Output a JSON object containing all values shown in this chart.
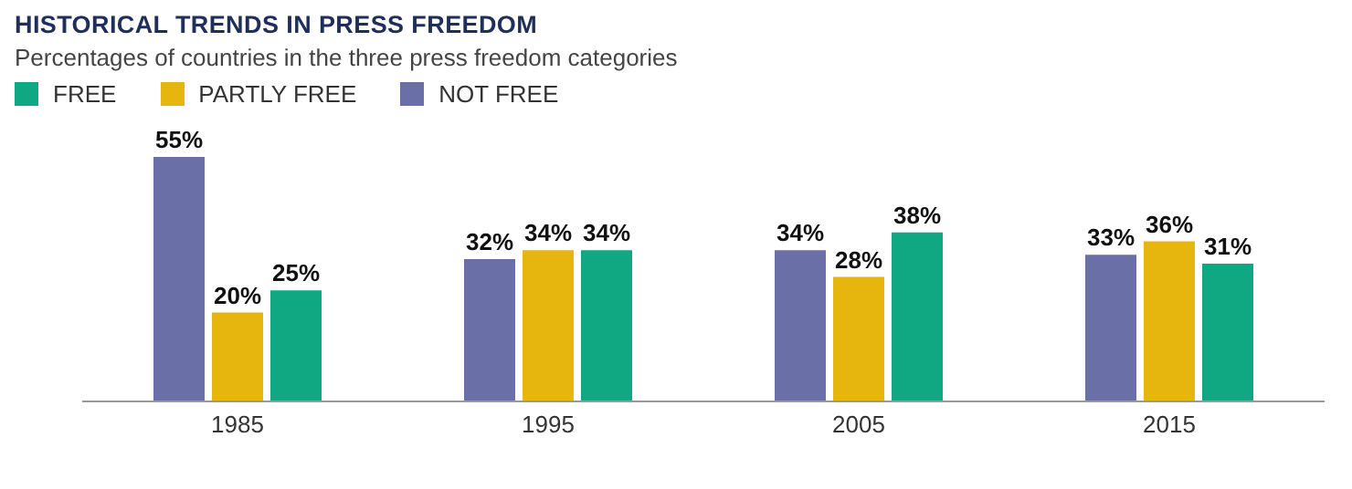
{
  "chart_data": {
    "type": "bar",
    "title": "HISTORICAL TRENDS IN PRESS FREEDOM",
    "subtitle": "Percentages of countries in the three press freedom categories",
    "categories": [
      "1985",
      "1995",
      "2005",
      "2015"
    ],
    "series": [
      {
        "name": "NOT FREE",
        "color": "#6b6fa8",
        "values": [
          55,
          32,
          34,
          33
        ],
        "value_labels": [
          "55%",
          "32%",
          "34%",
          "33%"
        ]
      },
      {
        "name": "PARTLY FREE",
        "color": "#e6b60f",
        "values": [
          20,
          34,
          28,
          36
        ],
        "value_labels": [
          "20%",
          "34%",
          "28%",
          "36%"
        ]
      },
      {
        "name": "FREE",
        "color": "#0fa883",
        "values": [
          25,
          34,
          38,
          31
        ],
        "value_labels": [
          "25%",
          "34%",
          "38%",
          "31%"
        ]
      }
    ],
    "legend": "top left",
    "grid": false
  }
}
